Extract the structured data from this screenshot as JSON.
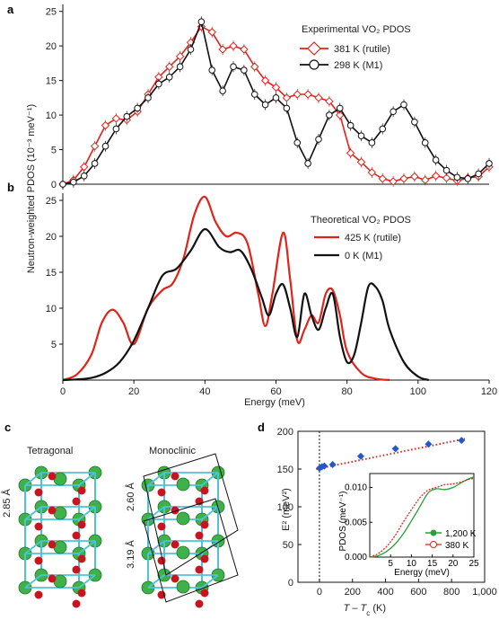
{
  "colors": {
    "red": "#e2231a",
    "black": "#111111",
    "green": "#2e9e3a",
    "cyan": "#4fc3d6",
    "blue": "#2457c8",
    "green_atom": "#3fb14a",
    "red_atom": "#c8141e"
  },
  "panel_labels": {
    "a": "a",
    "b": "b",
    "c": "c",
    "d": "d"
  },
  "ylabel_ab": "Neutron-weighted PDOS (10⁻³ meV⁻¹)",
  "xlabel_ab": "Energy (meV)",
  "panel_a": {
    "legend_title": "Experimental VO₂ PDOS",
    "series_labels": [
      "381 K (rutile)",
      "298 K (M1)"
    ]
  },
  "panel_b": {
    "legend_title": "Theoretical VO₂ PDOS",
    "series_labels": [
      "425 K (rutile)",
      "0 K (M1)"
    ]
  },
  "panel_c": {
    "tetragonal": "Tetragonal",
    "monoclinic": "Monoclinic",
    "dim_tetragonal": "2.85 Å",
    "dim_mono_top": "2.60 Å",
    "dim_mono_bottom": "3.19 Å"
  },
  "panel_d": {
    "ylabel": "E² (meV²)",
    "xlabel": "T – T",
    "xlabel_sub": "c",
    "xlabel_suffix": " (K)",
    "inset_ylabel": "PDOS (meV⁻¹)",
    "inset_xlabel": "Energy (meV)",
    "inset_series": [
      "1,200 K",
      "380 K"
    ]
  },
  "chart_data": [
    {
      "type": "line",
      "panel": "a",
      "xlabel": "Energy (meV)",
      "ylabel": "Neutron-weighted PDOS (10⁻³ meV⁻¹)",
      "xlim": [
        0,
        120
      ],
      "ylim": [
        0,
        26
      ],
      "y_ticks": [
        0,
        5,
        10,
        15,
        20,
        25
      ],
      "series": [
        {
          "name": "381 K (rutile)",
          "color": "#e2231a",
          "marker": "diamond",
          "x": [
            0,
            3,
            6,
            9,
            12,
            15,
            18,
            21,
            24,
            27,
            30,
            33,
            36,
            39,
            42,
            45,
            48,
            51,
            54,
            57,
            60,
            63,
            66,
            69,
            72,
            75,
            78,
            81,
            84,
            87,
            90,
            93,
            96,
            99,
            102,
            105,
            108,
            111,
            114,
            117,
            120
          ],
          "y": [
            0,
            0.6,
            2.5,
            5.5,
            8.5,
            9.5,
            9.3,
            10.5,
            13,
            15.5,
            17,
            18.5,
            20.5,
            22.8,
            22,
            19.5,
            20,
            19.5,
            17,
            15,
            14,
            12.5,
            13,
            13,
            12.5,
            12,
            10,
            4.5,
            3.2,
            1.7,
            0.8,
            0.4,
            0.8,
            1.1,
            0.6,
            1.2,
            0.9,
            0.5,
            0.9,
            1.1,
            2.5
          ]
        },
        {
          "name": "298 K (M1)",
          "color": "#111111",
          "marker": "circle",
          "x": [
            0,
            3,
            6,
            9,
            12,
            15,
            18,
            21,
            24,
            27,
            30,
            33,
            36,
            39,
            42,
            45,
            48,
            51,
            54,
            57,
            60,
            63,
            66,
            69,
            72,
            75,
            78,
            81,
            84,
            87,
            90,
            93,
            96,
            99,
            102,
            105,
            108,
            111,
            114,
            117,
            120
          ],
          "y": [
            0,
            0.3,
            1.2,
            3,
            5.5,
            8,
            9.8,
            11,
            12.5,
            14.5,
            15.5,
            17,
            19.5,
            23.5,
            16.5,
            13.5,
            17,
            16.5,
            13,
            11.5,
            12.5,
            11,
            6,
            3,
            6.5,
            10,
            11,
            8.5,
            7,
            6,
            8,
            10.5,
            11.5,
            9,
            6,
            3.5,
            2,
            1,
            0.8,
            1.5,
            3
          ]
        }
      ]
    },
    {
      "type": "line",
      "panel": "b",
      "xlabel": "Energy (meV)",
      "xlim": [
        0,
        120
      ],
      "ylim": [
        0,
        26
      ],
      "x_ticks": [
        0,
        20,
        40,
        60,
        80,
        100,
        120
      ],
      "y_ticks": [
        5,
        10,
        15,
        20,
        25
      ],
      "series": [
        {
          "name": "425 K (rutile)",
          "color": "#e2231a",
          "x": [
            0,
            4,
            8,
            11,
            14,
            17,
            20,
            24,
            28,
            31,
            34,
            37,
            40,
            43,
            46,
            49,
            52,
            55,
            57,
            59,
            62,
            64,
            66,
            68,
            70,
            72,
            74,
            76,
            78,
            80,
            84,
            88,
            92
          ],
          "y": [
            0,
            0.8,
            3.5,
            8,
            9.8,
            8,
            5,
            10,
            12.5,
            13.5,
            17,
            23,
            25.5,
            22,
            20,
            20.5,
            19,
            12,
            7.5,
            12,
            20.5,
            14,
            5.5,
            7,
            9,
            8,
            12,
            12.5,
            9,
            4,
            1,
            0.2,
            0
          ]
        },
        {
          "name": "0 K (M1)",
          "color": "#111111",
          "x": [
            0,
            4,
            8,
            12,
            16,
            20,
            24,
            28,
            32,
            36,
            40,
            44,
            47,
            50,
            53,
            56,
            58,
            60,
            62,
            64,
            66,
            68,
            70,
            72,
            74,
            76,
            78,
            80,
            82,
            84,
            86,
            88,
            90,
            92,
            96,
            100,
            103
          ],
          "y": [
            0,
            0.1,
            0.3,
            1,
            2.5,
            5.5,
            10,
            14.5,
            15.5,
            18,
            21,
            18.5,
            17.8,
            18,
            15.5,
            11.5,
            9,
            12,
            13.3,
            10,
            6,
            12,
            9,
            7,
            10,
            12,
            6,
            2.5,
            3.5,
            8,
            13,
            13,
            11,
            7,
            2.5,
            0.5,
            0
          ]
        }
      ]
    },
    {
      "type": "scatter",
      "panel": "d",
      "xlabel": "T – Tc (K)",
      "ylabel": "E² (meV²)",
      "xlim": [
        -130,
        1000
      ],
      "ylim": [
        0,
        200
      ],
      "x_ticks": [
        0,
        200,
        400,
        600,
        800,
        1000
      ],
      "x_tick_labels": [
        "0",
        "200",
        "400",
        "600",
        "800",
        "1,000"
      ],
      "y_ticks": [
        0,
        50,
        100,
        150,
        200
      ],
      "series": [
        {
          "name": "data",
          "color": "#2457c8",
          "marker": "diamond",
          "x": [
            0,
            15,
            30,
            80,
            250,
            460,
            660,
            860
          ],
          "y": [
            151,
            153,
            154,
            156,
            167,
            177,
            183,
            188
          ]
        }
      ],
      "fit_line": {
        "x": [
          -20,
          880
        ],
        "y": [
          150,
          190
        ],
        "color": "#e2231a",
        "style": "dotted"
      },
      "reference_line_x": 0
    },
    {
      "type": "line",
      "panel": "d-inset",
      "xlabel": "Energy (meV)",
      "ylabel": "PDOS (meV⁻¹)",
      "xlim": [
        0,
        25
      ],
      "ylim": [
        0,
        0.012
      ],
      "x_ticks": [
        5,
        10,
        15,
        20,
        25
      ],
      "y_ticks": [
        0,
        0.005,
        0.01
      ],
      "y_tick_labels": [
        "0.000",
        "0.005",
        "0.010"
      ],
      "series": [
        {
          "name": "1,200 K",
          "color": "#2e9e3a",
          "x": [
            0,
            2,
            4,
            6,
            8,
            10,
            12,
            14,
            16,
            18,
            20,
            22,
            24,
            25
          ],
          "y": [
            0,
            0.0002,
            0.0008,
            0.0018,
            0.0033,
            0.0052,
            0.0072,
            0.0092,
            0.0098,
            0.0097,
            0.01,
            0.0107,
            0.0113,
            0.0115
          ]
        },
        {
          "name": "380 K",
          "color": "#e2231a",
          "x": [
            0,
            2,
            4,
            6,
            8,
            10,
            12,
            14,
            16,
            18,
            20,
            22,
            24,
            25
          ],
          "y": [
            0,
            0.0005,
            0.0015,
            0.003,
            0.005,
            0.0068,
            0.0085,
            0.0096,
            0.01,
            0.0104,
            0.0105,
            0.0108,
            0.0112,
            0.0113
          ]
        }
      ]
    }
  ]
}
